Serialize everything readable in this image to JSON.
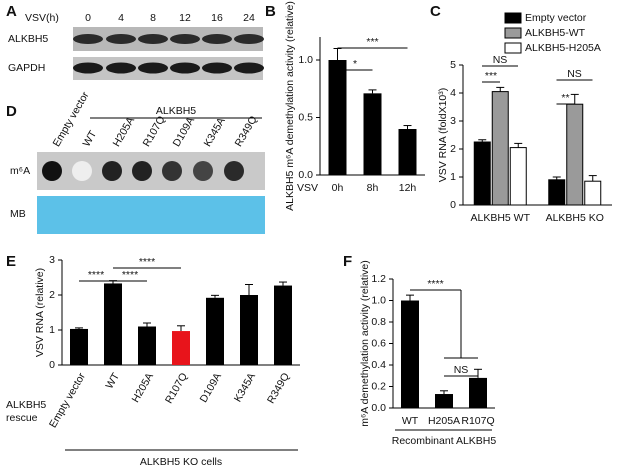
{
  "panel_a": {
    "panel": "A",
    "header": "VSV(h)",
    "columns": [
      "0",
      "4",
      "8",
      "12",
      "16",
      "24"
    ],
    "rows": [
      "ALKBH5",
      "GAPDH"
    ]
  },
  "panel_d": {
    "panel": "D",
    "header": "ALKBH5",
    "columns": [
      "Empty vector",
      "WT",
      "H205A",
      "R107Q",
      "D109A",
      "K345A",
      "R349Q"
    ],
    "rows": [
      "m⁶A",
      "MB"
    ]
  },
  "chart_data": [
    {
      "type": "bar",
      "panel": "B",
      "ylabel": "ALKBH5 m⁶A demethylation activity (relative)",
      "xlabel": "VSV",
      "categories": [
        "0h",
        "8h",
        "12h"
      ],
      "values": [
        1.0,
        0.71,
        0.4
      ],
      "errors": [
        0.1,
        0.03,
        0.03
      ],
      "color": "#000000",
      "ylim": [
        0,
        1.2
      ],
      "yticks": [
        {
          "value": 0,
          "label": "0.0"
        },
        {
          "value": 0.5,
          "label": "0.5"
        },
        {
          "value": 1,
          "label": "1.0"
        }
      ],
      "annotations": [
        "*",
        "***"
      ]
    },
    {
      "type": "grouped-bar",
      "panel": "C",
      "ylabel": "VSV RNA (foldX10³)",
      "categories": [
        "ALKBH5 WT",
        "ALKBH5 KO"
      ],
      "series": [
        {
          "name": "Empty vector",
          "color": "#000000",
          "values": [
            2.25,
            0.9
          ],
          "errors": [
            0.08,
            0.1
          ]
        },
        {
          "name": "ALKBH5-WT",
          "color": "#9a9a9a",
          "values": [
            4.05,
            3.6
          ],
          "errors": [
            0.15,
            0.35
          ]
        },
        {
          "name": "ALKBH5-H205A",
          "color": "#ffffff",
          "values": [
            2.05,
            0.85
          ],
          "errors": [
            0.15,
            0.2
          ]
        }
      ],
      "ylim": [
        0,
        5
      ],
      "yticks": [
        0,
        1,
        2,
        3,
        4,
        5
      ],
      "annotations": [
        "***",
        "NS",
        "**",
        "NS"
      ]
    },
    {
      "type": "bar",
      "panel": "E",
      "ylabel": "VSV RNA (relative)",
      "row_label": [
        "ALKBH5",
        "rescue"
      ],
      "xlabel": "ALKBH5 KO cells",
      "categories": [
        "Empty vector",
        "WT",
        "H205A",
        "R107Q",
        "D109A",
        "K345A",
        "R349Q"
      ],
      "values": [
        1.03,
        2.33,
        1.1,
        0.97,
        1.92,
        2.0,
        2.27
      ],
      "errors": [
        0.03,
        0.08,
        0.1,
        0.15,
        0.07,
        0.3,
        0.1
      ],
      "colors": [
        "#000000",
        "#000000",
        "#000000",
        "#e8141b",
        "#000000",
        "#000000",
        "#000000"
      ],
      "ylim": [
        0,
        3
      ],
      "yticks": [
        0,
        1,
        2,
        3
      ],
      "annotations": [
        "****",
        "****",
        "****"
      ]
    },
    {
      "type": "bar",
      "panel": "F",
      "ylabel": "m⁶A demethylation activity (relative)",
      "xlabel": "Recombinant ALKBH5",
      "categories": [
        "WT",
        "H205A",
        "R107Q"
      ],
      "values": [
        1.0,
        0.13,
        0.28
      ],
      "errors": [
        0.05,
        0.03,
        0.08
      ],
      "color": "#000000",
      "ylim": [
        0,
        1.2
      ],
      "yticks": [
        {
          "value": 0,
          "label": "0.0"
        },
        {
          "value": 0.2,
          "label": "0.2"
        },
        {
          "value": 0.4,
          "label": "0.4"
        },
        {
          "value": 0.6,
          "label": "0.6"
        },
        {
          "value": 0.8,
          "label": "0.8"
        },
        {
          "value": 1,
          "label": "1.0"
        },
        {
          "value": 1.2,
          "label": "1.2"
        }
      ],
      "annotations": [
        "****",
        "NS"
      ]
    }
  ]
}
